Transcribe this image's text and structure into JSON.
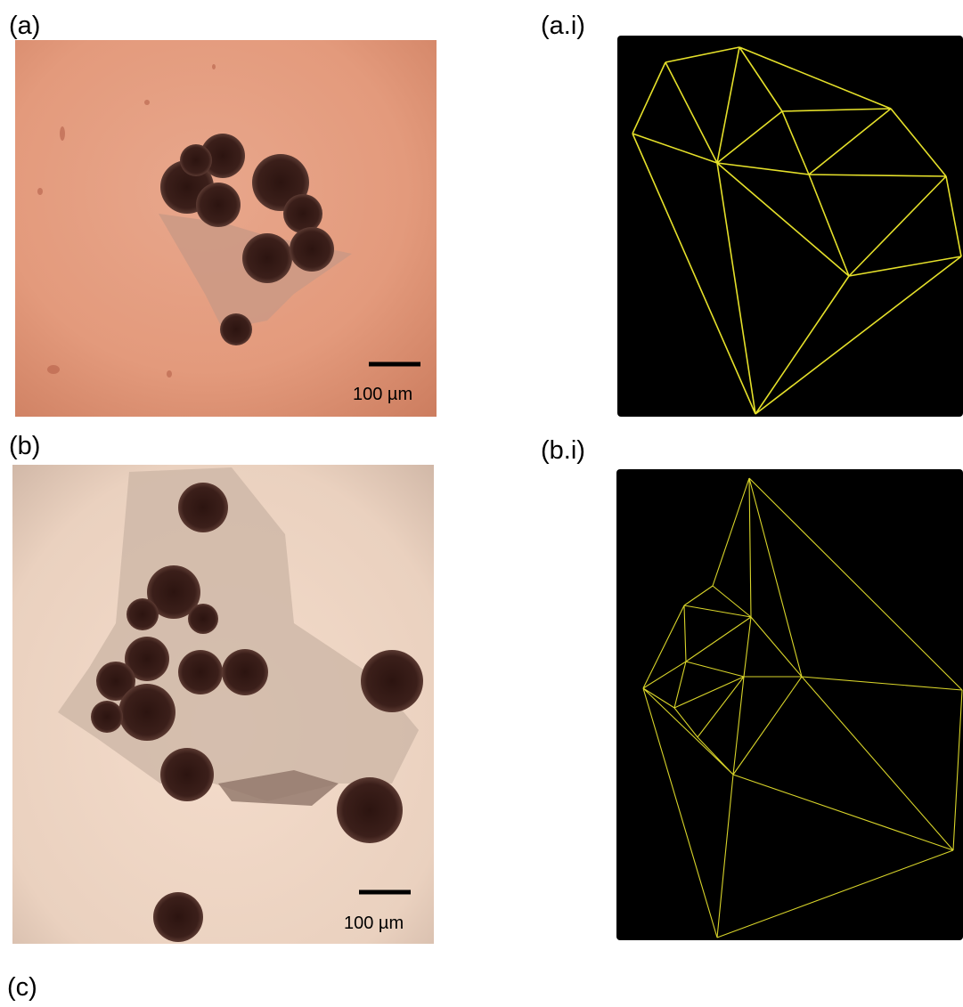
{
  "panels": [
    {
      "label": "(a)",
      "scale_bar": "100 µm"
    },
    {
      "label": "(a.i)"
    },
    {
      "label": "(b)",
      "scale_bar": "100 µm"
    },
    {
      "label": "(b.i)"
    },
    {
      "label": "(c)"
    }
  ]
}
